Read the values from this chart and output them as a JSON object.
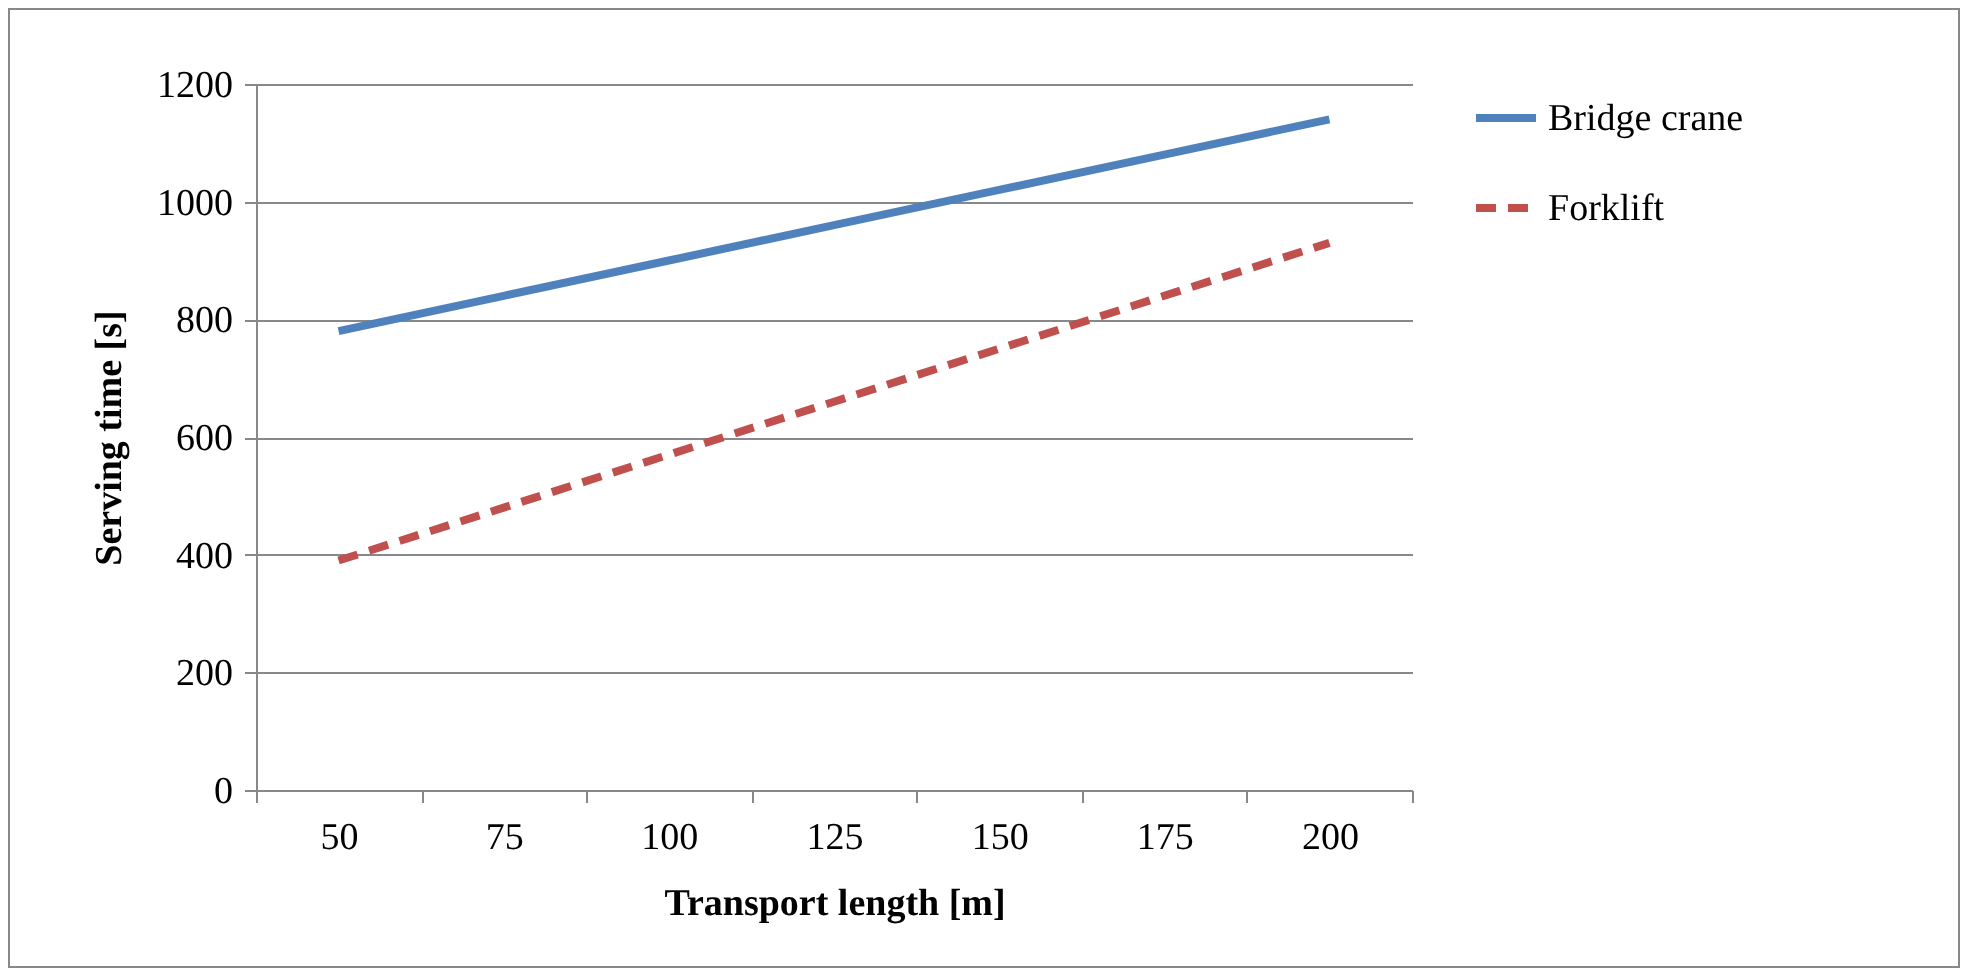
{
  "chart_data": {
    "type": "line",
    "xlabel": "Transport length [m]",
    "ylabel": "Serving time [s]",
    "categories": [
      "50",
      "75",
      "100",
      "125",
      "150",
      "175",
      "200"
    ],
    "series": [
      {
        "name": "Bridge crane",
        "color": "#4f81bd",
        "line_style": "solid",
        "values": [
          780,
          840,
          900,
          960,
          1020,
          1080,
          1140
        ]
      },
      {
        "name": "Forklift",
        "color": "#c0504d",
        "line_style": "dashed",
        "values": [
          390,
          480,
          570,
          660,
          750,
          840,
          930
        ]
      }
    ],
    "ylim": [
      0,
      1200
    ],
    "yticks": [
      0,
      200,
      400,
      600,
      800,
      1000,
      1200
    ],
    "grid": "y",
    "legend": "right",
    "marker": "none"
  }
}
